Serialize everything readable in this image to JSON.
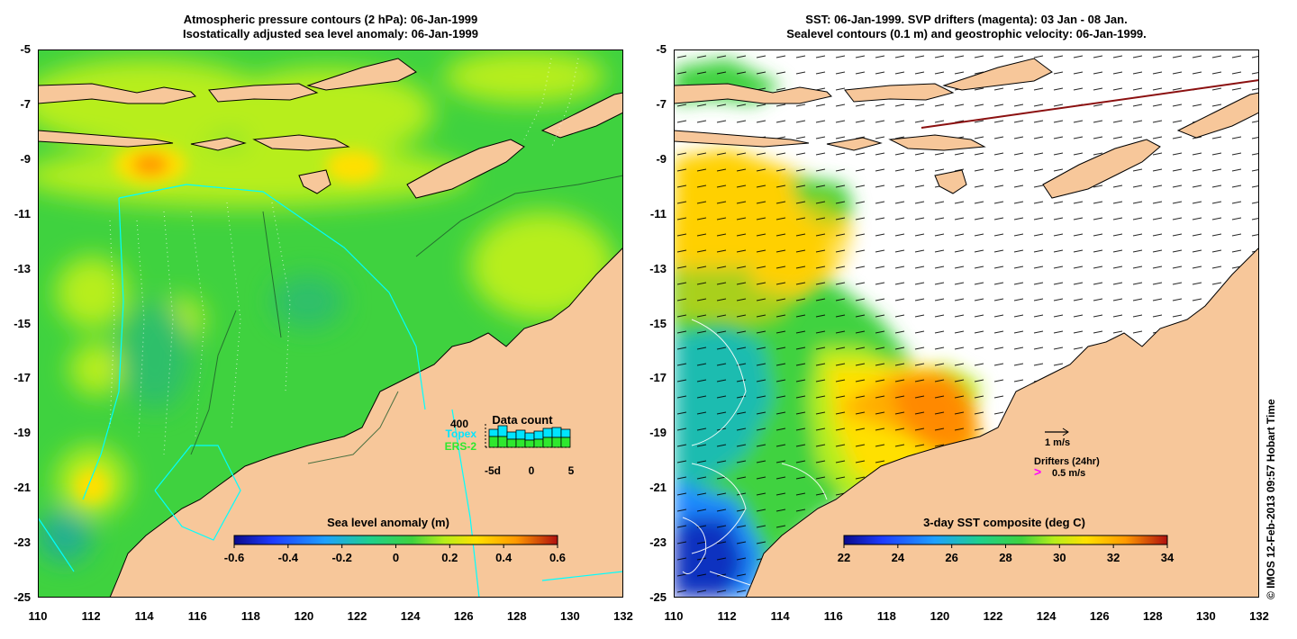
{
  "left_panel": {
    "title_line1": "Atmospheric pressure contours (2 hPa): 06-Jan-1999",
    "title_line2": "Isostatically adjusted sea level anomaly: 06-Jan-1999",
    "colorbar": {
      "label": "Sea level anomaly (m)",
      "ticks": [
        "-0.6",
        "-0.4",
        "-0.2",
        "0",
        "0.2",
        "0.4",
        "0.6"
      ]
    },
    "data_count": {
      "title": "Data count",
      "max_label": "400",
      "topex_label": "Topex",
      "ers_label": "ERS-2",
      "x_ticks": [
        "-5d",
        "0",
        "5"
      ],
      "topex_color": "#00e5ff",
      "ers_color": "#2ee82e"
    }
  },
  "right_panel": {
    "title_line1": "SST: 06-Jan-1999. SVP drifters (magenta): 03 Jan - 08 Jan.",
    "title_line2": "Sealevel contours (0.1 m) and geostrophic velocity: 06-Jan-1999.",
    "colorbar": {
      "label": "3-day SST composite (deg C)",
      "ticks": [
        "22",
        "24",
        "26",
        "28",
        "30",
        "32",
        "34"
      ]
    },
    "legend": {
      "velocity_label": "1 m/s",
      "drifters_label": "Drifters (24hr)",
      "drifters_speed": "0.5 m/s",
      "drifter_color": "#ff00ff"
    }
  },
  "y_ticks": [
    "-5",
    "-7",
    "-9",
    "-11",
    "-13",
    "-15",
    "-17",
    "-19",
    "-21",
    "-23",
    "-25"
  ],
  "x_ticks": [
    "110",
    "112",
    "114",
    "116",
    "118",
    "120",
    "122",
    "124",
    "126",
    "128",
    "130",
    "132"
  ],
  "side_label": "© IMOS 12-Feb-2013 09:57 Hobart Time",
  "colors": {
    "land": "#f7c79a",
    "sea_green": "#3fd23f",
    "sea_lime": "#b7ee1a",
    "sea_yellow": "#ffe000",
    "sea_orange": "#ff9a00"
  }
}
